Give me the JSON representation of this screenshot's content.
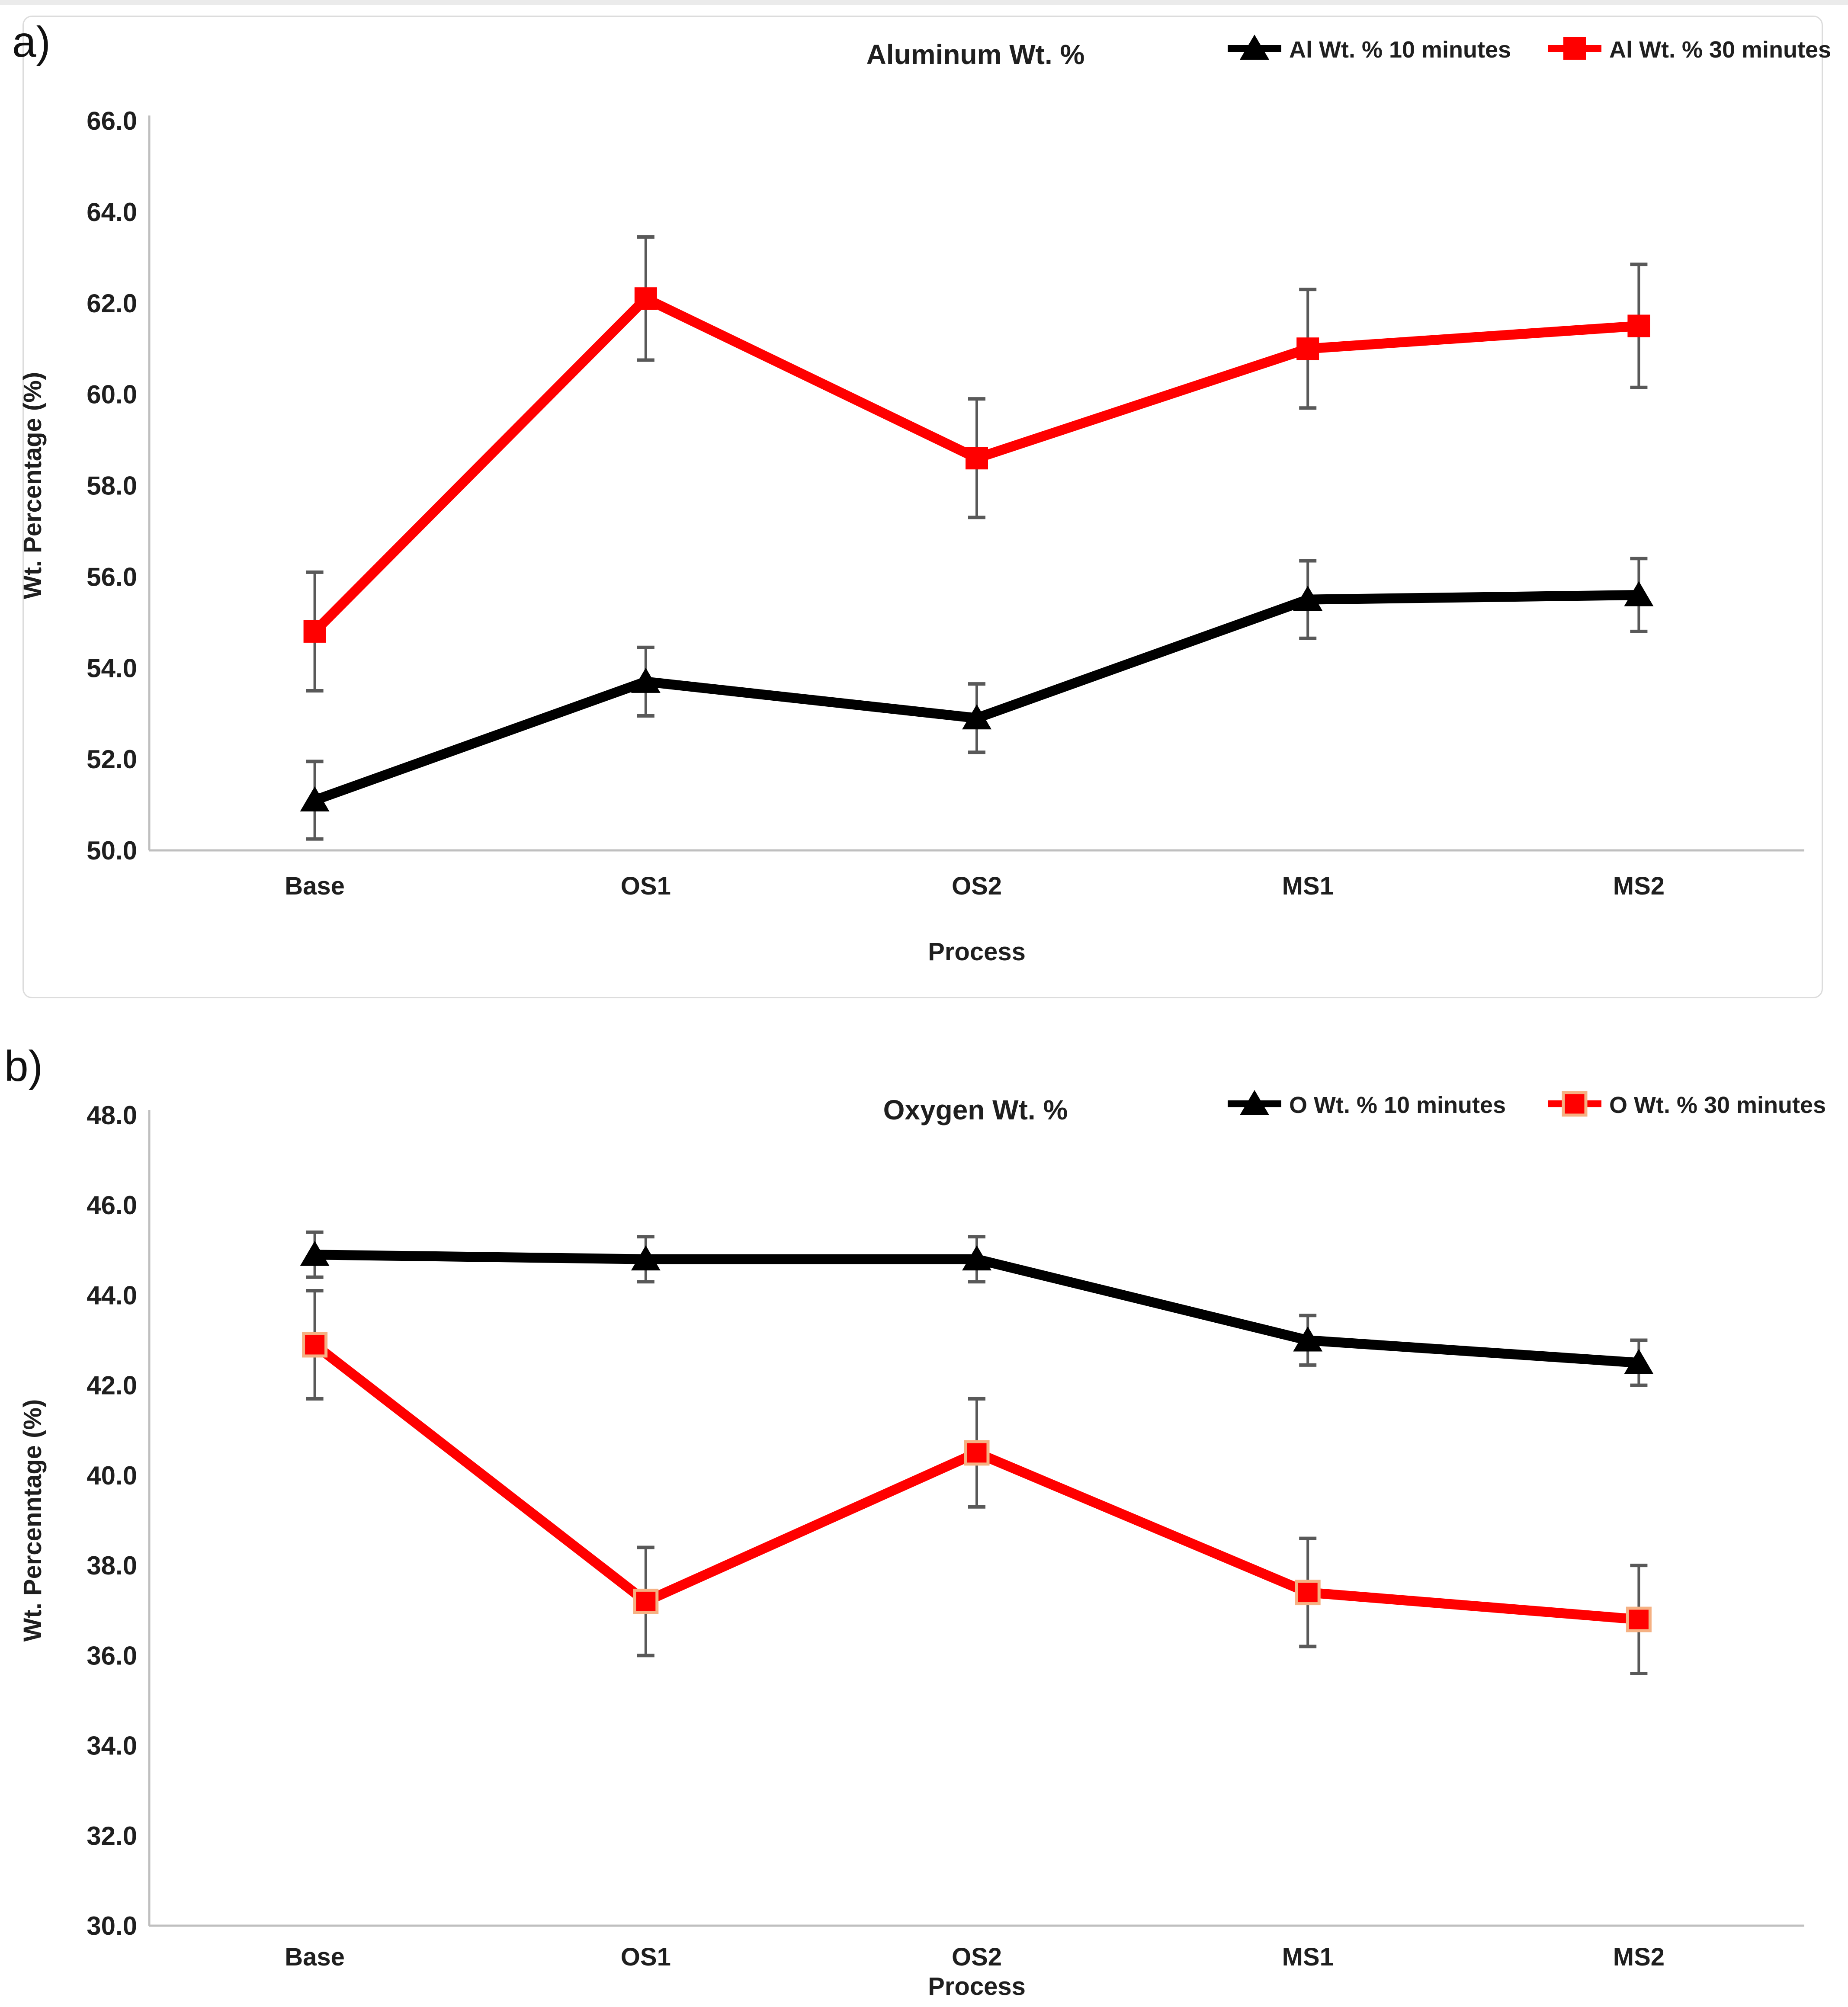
{
  "style": {
    "background": "#ffffff",
    "axis_color": "#bfbfbf",
    "error_bar_color": "#595959",
    "text_color": "#1f1f1f",
    "black_series_color": "#000000",
    "red_series_color": "#ff0000",
    "panel_b_square_border": "#f5b183",
    "panel_border_color": "#dcdcdc"
  },
  "chart_data": [
    {
      "type": "line",
      "panel_letter": "a)",
      "title": "Aluminum Wt. %",
      "xlabel": "Process",
      "ylabel": "Wt. Percentage (%)",
      "categories": [
        "Base",
        "OS1",
        "OS2",
        "MS1",
        "MS2"
      ],
      "ylim": [
        50.0,
        66.0
      ],
      "ytick_step": 2.0,
      "ytick_labels": [
        "66.0",
        "64.0",
        "62.0",
        "60.0",
        "58.0",
        "56.0",
        "54.0",
        "52.0",
        "50.0"
      ],
      "grid": false,
      "legend_position": "top-right",
      "series": [
        {
          "name": "Al Wt. % 10 minutes",
          "color": "#000000",
          "marker": "triangle",
          "values": [
            51.1,
            53.7,
            52.9,
            55.5,
            55.6
          ],
          "errors": [
            0.85,
            0.75,
            0.75,
            0.85,
            0.8
          ]
        },
        {
          "name": "Al Wt. % 30 minutes",
          "color": "#ff0000",
          "marker": "square",
          "values": [
            54.8,
            62.1,
            58.6,
            61.0,
            61.5
          ],
          "errors": [
            1.3,
            1.35,
            1.3,
            1.3,
            1.35
          ]
        }
      ]
    },
    {
      "type": "line",
      "panel_letter": "b)",
      "title": "Oxygen Wt. %",
      "xlabel": "Process",
      "ylabel": "Wt. Percenntage (%)",
      "categories": [
        "Base",
        "OS1",
        "OS2",
        "MS1",
        "MS2"
      ],
      "ylim": [
        30.0,
        48.0
      ],
      "ytick_step": 2.0,
      "ytick_labels": [
        "48.0",
        "46.0",
        "44.0",
        "42.0",
        "40.0",
        "38.0",
        "36.0",
        "34.0",
        "32.0",
        "30.0"
      ],
      "grid": false,
      "legend_position": "top-right",
      "series": [
        {
          "name": "O Wt. % 10 minutes",
          "color": "#000000",
          "marker": "triangle",
          "values": [
            44.9,
            44.8,
            44.8,
            43.0,
            42.5
          ],
          "errors": [
            0.5,
            0.5,
            0.5,
            0.55,
            0.5
          ]
        },
        {
          "name": "O Wt. % 30 minutes",
          "color": "#ff0000",
          "marker": "square",
          "marker_border": "#f5b183",
          "values": [
            42.9,
            37.2,
            40.5,
            37.4,
            36.8
          ],
          "errors": [
            1.2,
            1.2,
            1.2,
            1.2,
            1.2
          ]
        }
      ]
    }
  ]
}
